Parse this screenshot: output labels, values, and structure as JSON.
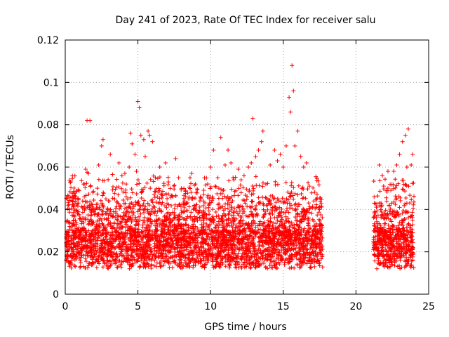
{
  "chart_data": {
    "type": "scatter",
    "title": "Day 241 of 2023, Rate Of TEC Index for receiver salu",
    "xlabel": "GPS time / hours",
    "ylabel": "ROTI / TECUs",
    "xlim": [
      0,
      25
    ],
    "ylim": [
      0,
      0.12
    ],
    "xticks": [
      "0",
      "5",
      "10",
      "15",
      "20",
      "25"
    ],
    "yticks": [
      "0",
      "0.02",
      "0.04",
      "0.06",
      "0.08",
      "0.1",
      "0.12"
    ],
    "grid": true,
    "marker": "+",
    "color": "#ff0000",
    "gap_hours": [
      17.7,
      21.2
    ],
    "points": [
      [
        0.3,
        0.032
      ],
      [
        0.6,
        0.037
      ],
      [
        0.9,
        0.039
      ],
      [
        1.2,
        0.044
      ],
      [
        1.3,
        0.052
      ],
      [
        1.4,
        0.059
      ],
      [
        1.5,
        0.082
      ],
      [
        1.6,
        0.057
      ],
      [
        1.7,
        0.082
      ],
      [
        1.9,
        0.048
      ],
      [
        2.1,
        0.04
      ],
      [
        2.2,
        0.05
      ],
      [
        2.3,
        0.061
      ],
      [
        2.5,
        0.07
      ],
      [
        2.6,
        0.073
      ],
      [
        2.8,
        0.045
      ],
      [
        3.1,
        0.066
      ],
      [
        3.4,
        0.045
      ],
      [
        3.7,
        0.062
      ],
      [
        3.9,
        0.056
      ],
      [
        4.1,
        0.057
      ],
      [
        4.2,
        0.052
      ],
      [
        4.4,
        0.06
      ],
      [
        4.5,
        0.076
      ],
      [
        4.6,
        0.071
      ],
      [
        4.8,
        0.066
      ],
      [
        4.9,
        0.058
      ],
      [
        5.0,
        0.091
      ],
      [
        5.1,
        0.088
      ],
      [
        5.2,
        0.075
      ],
      [
        5.4,
        0.073
      ],
      [
        5.5,
        0.065
      ],
      [
        5.7,
        0.077
      ],
      [
        5.8,
        0.075
      ],
      [
        6.0,
        0.072
      ],
      [
        6.2,
        0.055
      ],
      [
        6.5,
        0.06
      ],
      [
        6.9,
        0.062
      ],
      [
        7.1,
        0.053
      ],
      [
        7.4,
        0.046
      ],
      [
        7.6,
        0.064
      ],
      [
        7.8,
        0.055
      ],
      [
        8.0,
        0.05
      ],
      [
        8.2,
        0.044
      ],
      [
        8.5,
        0.045
      ],
      [
        8.7,
        0.057
      ],
      [
        9.0,
        0.048
      ],
      [
        9.3,
        0.046
      ],
      [
        9.5,
        0.044
      ],
      [
        9.8,
        0.052
      ],
      [
        10.0,
        0.06
      ],
      [
        10.2,
        0.068
      ],
      [
        10.5,
        0.055
      ],
      [
        10.7,
        0.074
      ],
      [
        11.0,
        0.061
      ],
      [
        11.2,
        0.068
      ],
      [
        11.4,
        0.062
      ],
      [
        11.6,
        0.054
      ],
      [
        11.9,
        0.059
      ],
      [
        12.1,
        0.054
      ],
      [
        12.3,
        0.056
      ],
      [
        12.6,
        0.06
      ],
      [
        12.8,
        0.062
      ],
      [
        12.9,
        0.083
      ],
      [
        13.1,
        0.065
      ],
      [
        13.3,
        0.068
      ],
      [
        13.5,
        0.072
      ],
      [
        13.6,
        0.077
      ],
      [
        13.8,
        0.052
      ],
      [
        14.1,
        0.061
      ],
      [
        14.4,
        0.068
      ],
      [
        14.6,
        0.063
      ],
      [
        14.8,
        0.066
      ],
      [
        15.0,
        0.06
      ],
      [
        15.2,
        0.07
      ],
      [
        15.4,
        0.093
      ],
      [
        15.5,
        0.086
      ],
      [
        15.6,
        0.108
      ],
      [
        15.7,
        0.096
      ],
      [
        15.8,
        0.07
      ],
      [
        16.0,
        0.077
      ],
      [
        16.2,
        0.065
      ],
      [
        16.4,
        0.06
      ],
      [
        16.6,
        0.062
      ],
      [
        16.8,
        0.051
      ],
      [
        17.1,
        0.044
      ],
      [
        17.3,
        0.041
      ],
      [
        17.5,
        0.04
      ],
      [
        21.3,
        0.039
      ],
      [
        21.6,
        0.061
      ],
      [
        21.9,
        0.051
      ],
      [
        22.2,
        0.058
      ],
      [
        22.4,
        0.049
      ],
      [
        22.6,
        0.058
      ],
      [
        22.8,
        0.061
      ],
      [
        23.0,
        0.066
      ],
      [
        23.2,
        0.072
      ],
      [
        23.4,
        0.075
      ],
      [
        23.5,
        0.06
      ],
      [
        23.6,
        0.078
      ],
      [
        23.8,
        0.061
      ],
      [
        23.9,
        0.066
      ]
    ]
  }
}
